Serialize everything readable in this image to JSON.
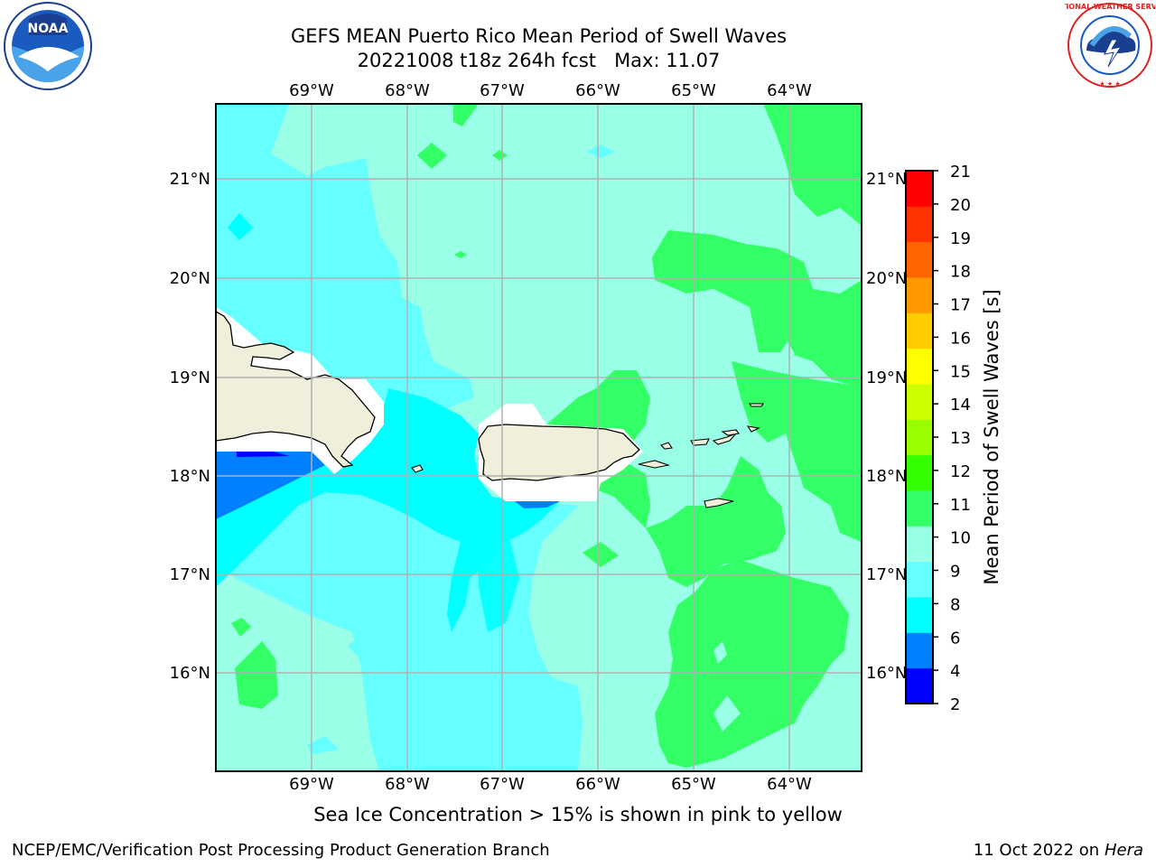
{
  "title": {
    "line1": "GEFS MEAN Puerto Rico Mean Period of Swell Waves",
    "line2": "20221008 t18z 264h fcst",
    "max_label": "Max: 11.07"
  },
  "map": {
    "lon_labels": [
      "69°W",
      "68°W",
      "67°W",
      "66°W",
      "65°W",
      "64°W"
    ],
    "lat_labels": [
      "21°N",
      "20°N",
      "19°N",
      "18°N",
      "17°N",
      "16°N"
    ]
  },
  "colorbar": {
    "label": "Mean Period of Swell Waves [s]",
    "ticks": [
      "2",
      "4",
      "6",
      "8",
      "9",
      "10",
      "11",
      "12",
      "13",
      "14",
      "15",
      "16",
      "17",
      "18",
      "19",
      "20",
      "21"
    ],
    "colors": [
      "#0000ff",
      "#0080ff",
      "#00ffff",
      "#66ffff",
      "#99ffe6",
      "#33ff66",
      "#33ff00",
      "#99ff00",
      "#ccff00",
      "#ffff00",
      "#ffcc00",
      "#ff9900",
      "#ff6600",
      "#ff3300",
      "#ff0000"
    ]
  },
  "note": "Sea Ice Concentration > 15% is shown in pink to yellow",
  "footer": {
    "left": "NCEP/EMC/Verification Post Processing Product Generation Branch",
    "date": "11 Oct 2022 on",
    "machine": "Hera"
  },
  "logos": {
    "left": "NOAA",
    "right": "NATIONAL WEATHER SERVICE"
  }
}
